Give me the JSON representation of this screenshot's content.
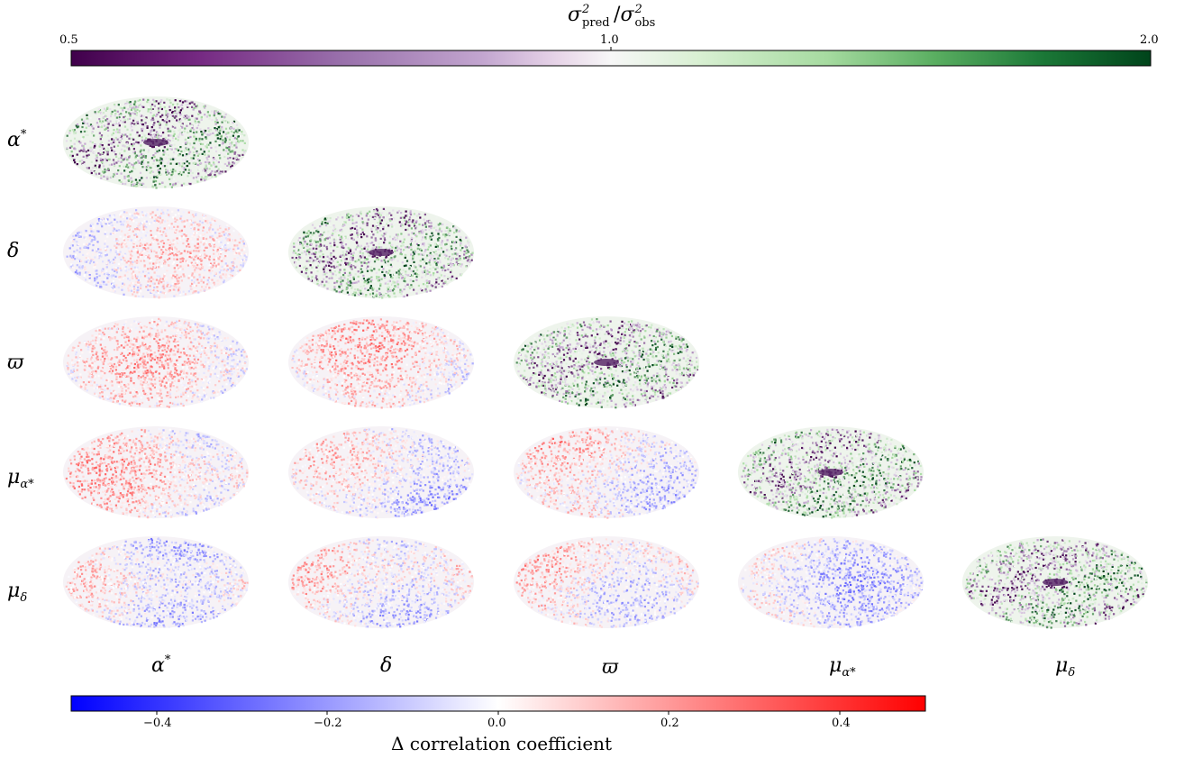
{
  "chart_data": [
    {
      "type": "heatmap",
      "description_role": "diagonal panels (sky maps, Mollweide projection)",
      "colorbar_title": "σ²pred/σ²obs",
      "colorbar_ticks": [
        "0.5",
        "1.0",
        "2.0"
      ],
      "range": [
        0.5,
        2.0
      ],
      "scale": "log",
      "colormap_endpoints": [
        "#40004b",
        "#f7f7f7",
        "#00441b"
      ],
      "colorbar_position": "top"
    },
    {
      "type": "heatmap",
      "description_role": "off-diagonal panels (sky maps, Mollweide projection)",
      "colorbar_title": "Δ correlation coefficient",
      "colorbar_ticks": [
        "−0.4",
        "−0.2",
        "0.0",
        "0.2",
        "0.4"
      ],
      "range": [
        -0.5,
        0.5
      ],
      "colormap_endpoints": [
        "#0000ff",
        "#ffffff",
        "#ff0000"
      ],
      "colorbar_position": "bottom"
    }
  ],
  "parameters": {
    "alpha": {
      "base": "α",
      "sup": "*"
    },
    "delta": {
      "base": "δ"
    },
    "parallax": {
      "base": "ϖ"
    },
    "mu_alpha": {
      "base": "μ",
      "sub": "α*"
    },
    "mu_delta": {
      "base": "μ",
      "sub": "δ"
    }
  },
  "colorbar_top": {
    "title_a": "σ",
    "title_a_sup": "2",
    "title_a_sub": "pred",
    "slash": "/",
    "title_b": "σ",
    "title_b_sup": "2",
    "title_b_sub": "obs",
    "ticks": [
      "0.5",
      "1.0",
      "2.0"
    ]
  },
  "colorbar_bottom": {
    "title": "Δ correlation coefficient",
    "ticks": [
      "−0.4",
      "−0.2",
      "0.0",
      "0.2",
      "0.4"
    ]
  }
}
